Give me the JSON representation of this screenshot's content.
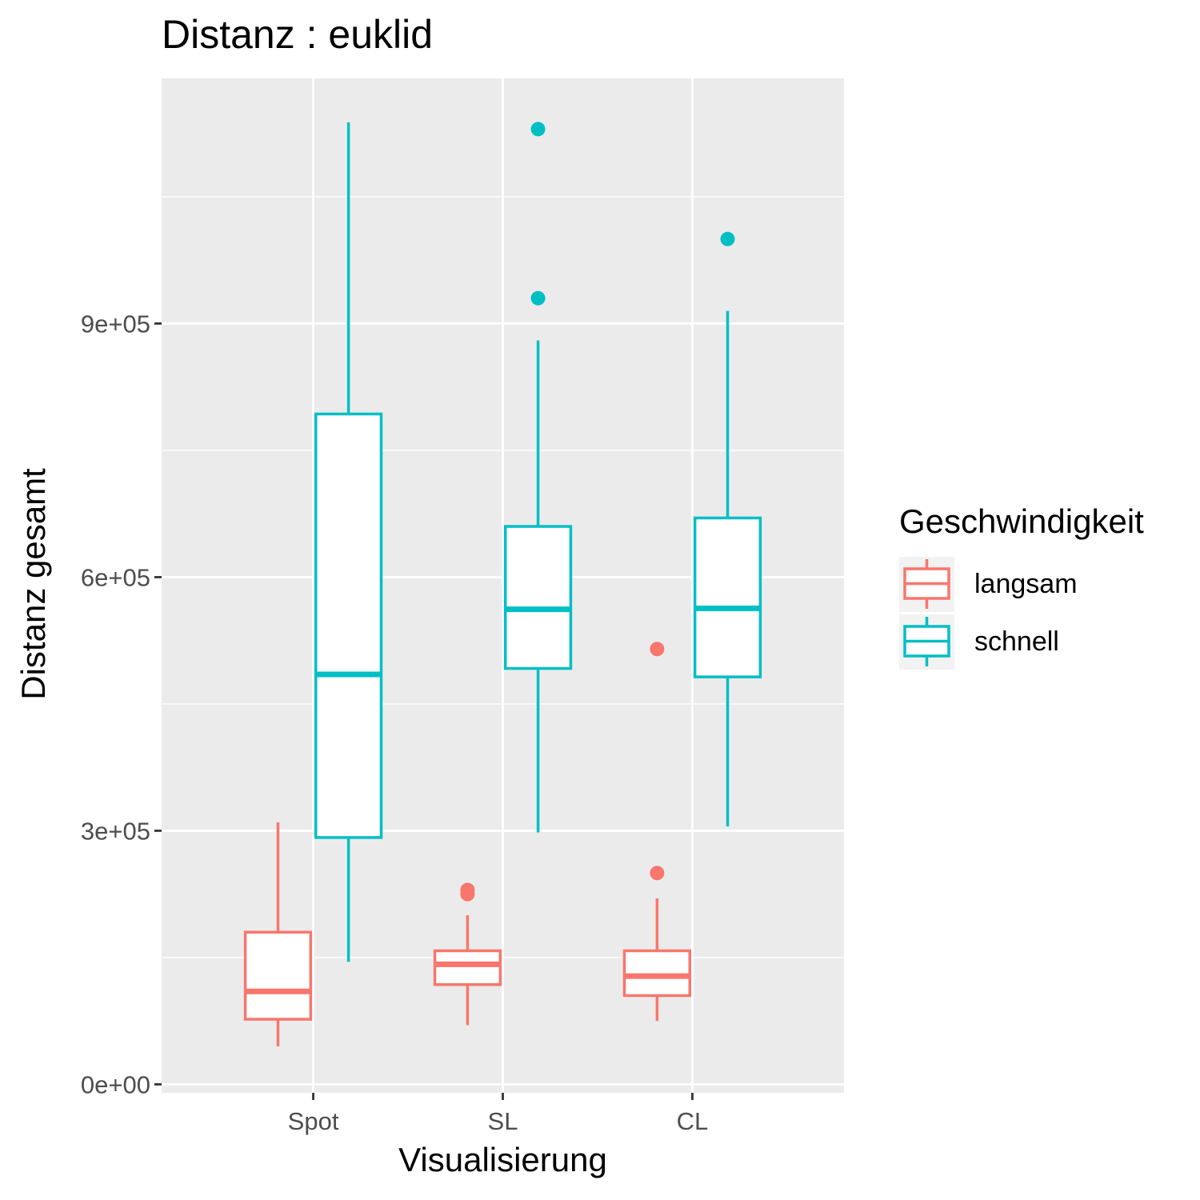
{
  "chart_data": {
    "type": "boxplot",
    "title": "Distanz : euklid",
    "xlabel": "Visualisierung",
    "ylabel": "Distanz gesamt",
    "categories": [
      "Spot",
      "SL",
      "CL"
    ],
    "y_ticks": [
      0,
      300000,
      600000,
      900000
    ],
    "y_tick_labels": [
      "0e+00",
      "3e+05",
      "6e+05",
      "9e+05"
    ],
    "ylim": [
      -10000,
      1190000
    ],
    "grid": true,
    "legend": {
      "title": "Geschwindigkeit",
      "position": "right"
    },
    "series": [
      {
        "name": "langsam",
        "color": "#F8766D",
        "boxes": [
          {
            "whisker_low": 45000,
            "q1": 77000,
            "median": 110000,
            "q3": 180000,
            "whisker_high": 310000,
            "outliers": []
          },
          {
            "whisker_low": 70000,
            "q1": 118000,
            "median": 142000,
            "q3": 158000,
            "whisker_high": 200000,
            "outliers": [
              225000,
              230000
            ]
          },
          {
            "whisker_low": 75000,
            "q1": 105000,
            "median": 128000,
            "q3": 158000,
            "whisker_high": 220000,
            "outliers": [
              250000,
              515000
            ]
          }
        ]
      },
      {
        "name": "schnell",
        "color": "#00BFC4",
        "boxes": [
          {
            "whisker_low": 145000,
            "q1": 292000,
            "median": 485000,
            "q3": 793000,
            "whisker_high": 1138000,
            "outliers": []
          },
          {
            "whisker_low": 298000,
            "q1": 492000,
            "median": 562000,
            "q3": 660000,
            "whisker_high": 880000,
            "outliers": [
              930000,
              1130000
            ]
          },
          {
            "whisker_low": 305000,
            "q1": 482000,
            "median": 563000,
            "q3": 670000,
            "whisker_high": 915000,
            "outliers": [
              1000000
            ]
          }
        ]
      }
    ]
  }
}
